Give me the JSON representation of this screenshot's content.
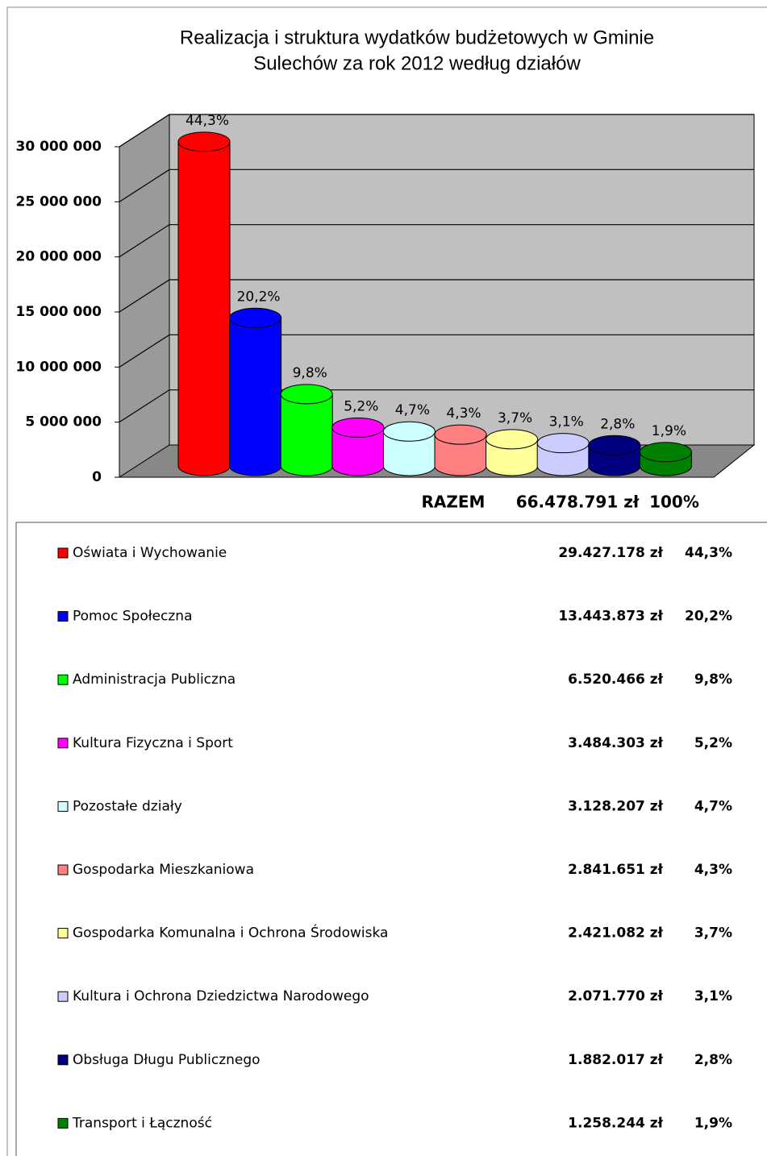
{
  "chart_data": {
    "type": "bar3d",
    "title_lines": [
      "Realizacja i struktura wydatków budżetowych w Gminie",
      "Sulechów za rok 2012 według działów"
    ],
    "categories": [
      "Oświata i Wychowanie",
      "Pomoc Społeczna",
      "Administracja Publiczna",
      "Kultura Fizyczna i Sport",
      "Pozostałe działy",
      "Gospodarka Mieszkaniowa",
      "Gospodarka Komunalna i Ochrona Środowiska",
      "Kultura i Ochrona Dziedzictwa Narodowego",
      "Obsługa Długu Publicznego",
      "Transport i Łączność"
    ],
    "values": [
      29427178,
      13443873,
      6520466,
      3484303,
      3128207,
      2841651,
      2421082,
      2071770,
      1882017,
      1258244
    ],
    "amount_labels": [
      "29.427.178 zł",
      "13.443.873 zł",
      "6.520.466 zł",
      "3.484.303 zł",
      "3.128.207 zł",
      "2.841.651 zł",
      "2.421.082 zł",
      "2.071.770 zł",
      "1.882.017 zł",
      "1.258.244 zł"
    ],
    "percent_labels": [
      "44,3%",
      "20,2%",
      "9,8%",
      "5,2%",
      "4,7%",
      "4,3%",
      "3,7%",
      "3,1%",
      "2,8%",
      "1,9%"
    ],
    "colors": [
      "#ff0000",
      "#0000ff",
      "#00ff00",
      "#ff00ff",
      "#ccffff",
      "#ff8080",
      "#ffff99",
      "#ccccff",
      "#000080",
      "#008000"
    ],
    "total_label": "RAZEM",
    "total_amount": "66.478.791 zł",
    "total_percent": "100%",
    "ylim": [
      0,
      30000000
    ],
    "yticks": [
      0,
      {
        "value": 5000000,
        "label": "5 000 000"
      },
      {
        "value": 10000000,
        "label": "10 000 000"
      },
      {
        "value": 15000000,
        "label": "15 000 000"
      },
      {
        "value": 20000000,
        "label": "20 000 000"
      },
      {
        "value": 25000000,
        "label": "25 000 000"
      },
      {
        "value": 30000000,
        "label": "30 000 000"
      }
    ],
    "grid": true
  }
}
